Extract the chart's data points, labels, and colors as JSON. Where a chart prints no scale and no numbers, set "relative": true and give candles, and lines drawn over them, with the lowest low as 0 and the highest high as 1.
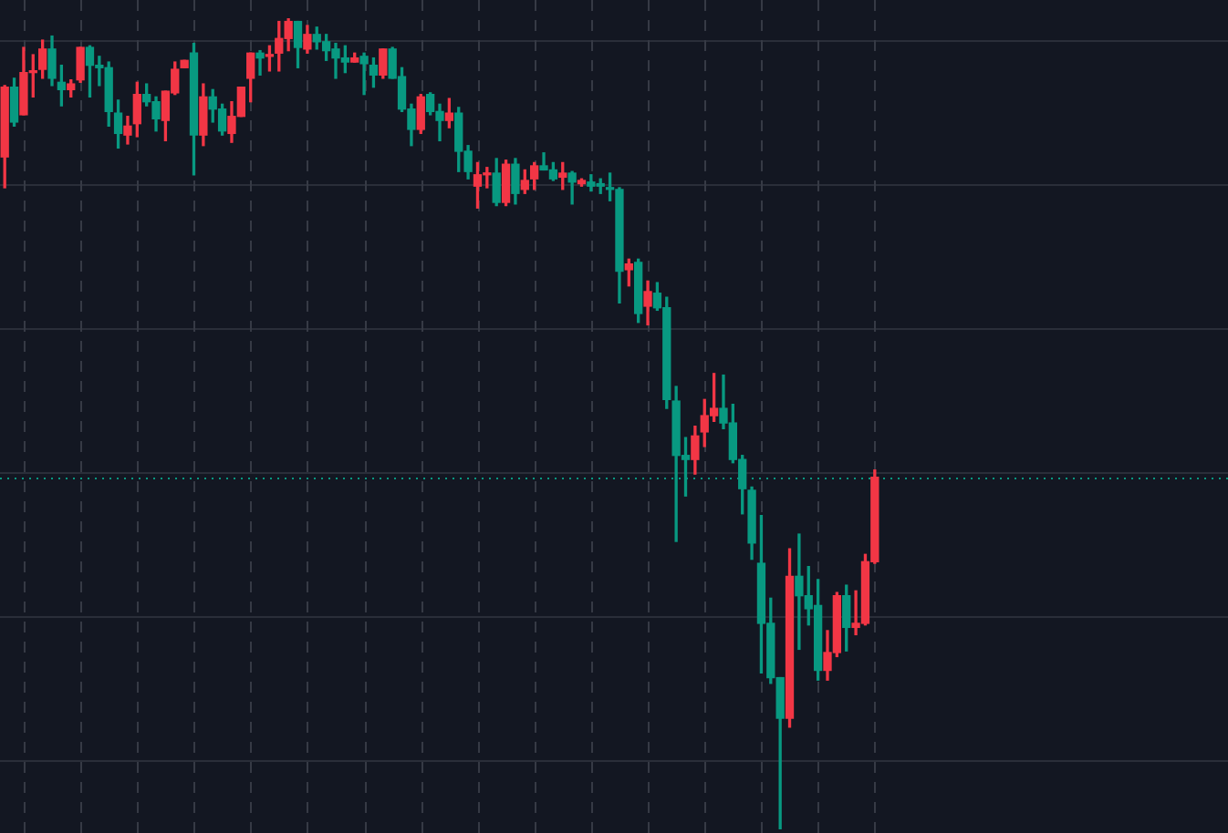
{
  "chart_data": {
    "type": "candlestick",
    "relative": true,
    "grid": true,
    "categories": [
      null,
      null,
      null,
      null,
      null,
      null,
      null,
      null,
      null,
      null,
      null,
      null,
      null,
      null,
      null,
      null,
      null,
      null,
      null,
      null,
      null,
      null,
      null,
      null,
      null,
      null,
      null,
      null,
      null,
      null,
      null,
      null,
      null,
      null,
      null,
      null,
      null,
      null,
      null,
      null,
      null,
      null,
      null,
      null,
      null,
      null,
      null,
      null,
      null,
      null,
      null,
      null,
      null,
      null,
      null,
      null,
      null,
      null,
      null,
      null,
      null,
      null,
      null,
      null,
      null,
      null,
      null,
      null,
      null,
      null,
      null,
      null,
      null,
      null,
      null,
      null,
      null,
      null,
      null,
      null,
      null,
      null,
      null,
      null,
      null,
      null,
      null,
      null,
      null,
      null,
      null,
      null,
      null
    ],
    "ohlc": [
      [
        0.829,
        0.917,
        0.791,
        0.915
      ],
      [
        0.915,
        0.926,
        0.867,
        0.872
      ],
      [
        0.881,
        0.964,
        0.881,
        0.933
      ],
      [
        0.933,
        0.955,
        0.903,
        0.935
      ],
      [
        0.937,
        0.973,
        0.926,
        0.962
      ],
      [
        0.962,
        0.978,
        0.917,
        0.926
      ],
      [
        0.921,
        0.942,
        0.892,
        0.912
      ],
      [
        0.912,
        0.924,
        0.903,
        0.919
      ],
      [
        0.924,
        0.964,
        0.921,
        0.964
      ],
      [
        0.964,
        0.966,
        0.903,
        0.942
      ],
      [
        0.942,
        0.953,
        0.917,
        0.939
      ],
      [
        0.939,
        0.946,
        0.867,
        0.885
      ],
      [
        0.883,
        0.899,
        0.84,
        0.858
      ],
      [
        0.856,
        0.879,
        0.845,
        0.867
      ],
      [
        0.87,
        0.921,
        0.854,
        0.906
      ],
      [
        0.906,
        0.919,
        0.892,
        0.897
      ],
      [
        0.897,
        0.903,
        0.861,
        0.876
      ],
      [
        0.874,
        0.91,
        0.849,
        0.91
      ],
      [
        0.908,
        0.946,
        0.906,
        0.937
      ],
      [
        0.939,
        0.948,
        0.939,
        0.948
      ],
      [
        0.957,
        0.969,
        0.807,
        0.856
      ],
      [
        0.856,
        0.919,
        0.843,
        0.903
      ],
      [
        0.903,
        0.912,
        0.872,
        0.888
      ],
      [
        0.888,
        0.894,
        0.856,
        0.861
      ],
      [
        0.858,
        0.897,
        0.847,
        0.879
      ],
      [
        0.879,
        0.915,
        0.879,
        0.915
      ],
      [
        0.926,
        0.957,
        0.897,
        0.957
      ],
      [
        0.957,
        0.96,
        0.93,
        0.951
      ],
      [
        0.953,
        0.966,
        0.935,
        0.955
      ],
      [
        0.957,
        0.996,
        0.935,
        0.975
      ],
      [
        0.975,
        1,
        0.96,
        0.996
      ],
      [
        0.996,
        0.996,
        0.939,
        0.964
      ],
      [
        0.962,
        0.991,
        0.957,
        0.98
      ],
      [
        0.98,
        0.989,
        0.962,
        0.971
      ],
      [
        0.971,
        0.98,
        0.948,
        0.96
      ],
      [
        0.962,
        0.969,
        0.926,
        0.951
      ],
      [
        0.951,
        0.966,
        0.933,
        0.946
      ],
      [
        0.946,
        0.957,
        0.946,
        0.951
      ],
      [
        0.953,
        0.957,
        0.906,
        0.944
      ],
      [
        0.942,
        0.951,
        0.915,
        0.93
      ],
      [
        0.93,
        0.962,
        0.926,
        0.962
      ],
      [
        0.962,
        0.964,
        0.926,
        0.926
      ],
      [
        0.928,
        0.939,
        0.885,
        0.888
      ],
      [
        0.888,
        0.894,
        0.843,
        0.863
      ],
      [
        0.863,
        0.906,
        0.858,
        0.903
      ],
      [
        0.906,
        0.908,
        0.881,
        0.885
      ],
      [
        0.885,
        0.894,
        0.849,
        0.874
      ],
      [
        0.874,
        0.901,
        0.865,
        0.883
      ],
      [
        0.883,
        0.89,
        0.811,
        0.836
      ],
      [
        0.836,
        0.843,
        0.802,
        0.811
      ],
      [
        0.793,
        0.822,
        0.766,
        0.807
      ],
      [
        0.807,
        0.816,
        0.791,
        0.809
      ],
      [
        0.809,
        0.827,
        0.769,
        0.773
      ],
      [
        0.773,
        0.825,
        0.769,
        0.82
      ],
      [
        0.82,
        0.827,
        0.771,
        0.784
      ],
      [
        0.789,
        0.813,
        0.784,
        0.8
      ],
      [
        0.802,
        0.822,
        0.789,
        0.818
      ],
      [
        0.818,
        0.834,
        0.813,
        0.813
      ],
      [
        0.813,
        0.822,
        0.8,
        0.802
      ],
      [
        0.804,
        0.822,
        0.789,
        0.809
      ],
      [
        0.809,
        0.811,
        0.771,
        0.798
      ],
      [
        0.796,
        0.802,
        0.793,
        0.8
      ],
      [
        0.798,
        0.807,
        0.787,
        0.793
      ],
      [
        0.796,
        0.802,
        0.784,
        0.793
      ],
      [
        0.791,
        0.809,
        0.775,
        0.789
      ],
      [
        0.789,
        0.791,
        0.649,
        0.688
      ],
      [
        0.69,
        0.703,
        0.67,
        0.697
      ],
      [
        0.699,
        0.703,
        0.625,
        0.636
      ],
      [
        0.645,
        0.676,
        0.622,
        0.663
      ],
      [
        0.661,
        0.674,
        0.64,
        0.643
      ],
      [
        0.643,
        0.656,
        0.519,
        0.53
      ],
      [
        0.528,
        0.546,
        0.355,
        0.461
      ],
      [
        0.461,
        0.483,
        0.411,
        0.456
      ],
      [
        0.456,
        0.497,
        0.438,
        0.485
      ],
      [
        0.49,
        0.53,
        0.472,
        0.51
      ],
      [
        0.51,
        0.562,
        0.503,
        0.519
      ],
      [
        0.519,
        0.56,
        0.494,
        0.501
      ],
      [
        0.501,
        0.524,
        0.452,
        0.456
      ],
      [
        0.456,
        0.461,
        0.389,
        0.42
      ],
      [
        0.418,
        0.422,
        0.333,
        0.353
      ],
      [
        0.328,
        0.387,
        0.193,
        0.254
      ],
      [
        0.254,
        0.285,
        0.18,
        0.187
      ],
      [
        0.187,
        0.187,
        0,
        0.137
      ],
      [
        0.137,
        0.346,
        0.126,
        0.312
      ],
      [
        0.312,
        0.364,
        0.222,
        0.288
      ],
      [
        0.288,
        0.324,
        0.252,
        0.272
      ],
      [
        0.276,
        0.308,
        0.184,
        0.196
      ],
      [
        0.196,
        0.245,
        0.184,
        0.218
      ],
      [
        0.218,
        0.292,
        0.213,
        0.288
      ],
      [
        0.288,
        0.301,
        0.22,
        0.249
      ],
      [
        0.249,
        0.294,
        0.24,
        0.254
      ],
      [
        0.254,
        0.339,
        0.252,
        0.33
      ],
      [
        0.33,
        0.443,
        0.328,
        0.434
      ]
    ],
    "colors": [
      "#f23645",
      "#089981",
      "#f23645",
      "#f23645",
      "#f23645",
      "#089981",
      "#089981",
      "#f23645",
      "#f23645",
      "#089981",
      "#089981",
      "#089981",
      "#089981",
      "#f23645",
      "#f23645",
      "#089981",
      "#089981",
      "#f23645",
      "#f23645",
      "#f23645",
      "#089981",
      "#f23645",
      "#089981",
      "#089981",
      "#f23645",
      "#f23645",
      "#f23645",
      "#089981",
      "#f23645",
      "#f23645",
      "#f23645",
      "#089981",
      "#f23645",
      "#089981",
      "#089981",
      "#089981",
      "#089981",
      "#f23645",
      "#089981",
      "#089981",
      "#f23645",
      "#089981",
      "#089981",
      "#089981",
      "#f23645",
      "#089981",
      "#089981",
      "#f23645",
      "#089981",
      "#089981",
      "#f23645",
      "#f23645",
      "#089981",
      "#f23645",
      "#089981",
      "#f23645",
      "#f23645",
      "#089981",
      "#089981",
      "#f23645",
      "#089981",
      "#f23645",
      "#089981",
      "#089981",
      "#089981",
      "#089981",
      "#f23645",
      "#089981",
      "#f23645",
      "#089981",
      "#089981",
      "#089981",
      "#089981",
      "#f23645",
      "#f23645",
      "#f23645",
      "#089981",
      "#089981",
      "#089981",
      "#089981",
      "#089981",
      "#089981",
      "#089981",
      "#f23645",
      "#089981",
      "#089981",
      "#089981",
      "#f23645",
      "#f23645",
      "#089981",
      "#f23645",
      "#f23645",
      "#f23645"
    ],
    "ref_lines": [
      {
        "axis": "y",
        "value": 0.434,
        "color": "#089981",
        "line_style": "dotted"
      }
    ]
  }
}
